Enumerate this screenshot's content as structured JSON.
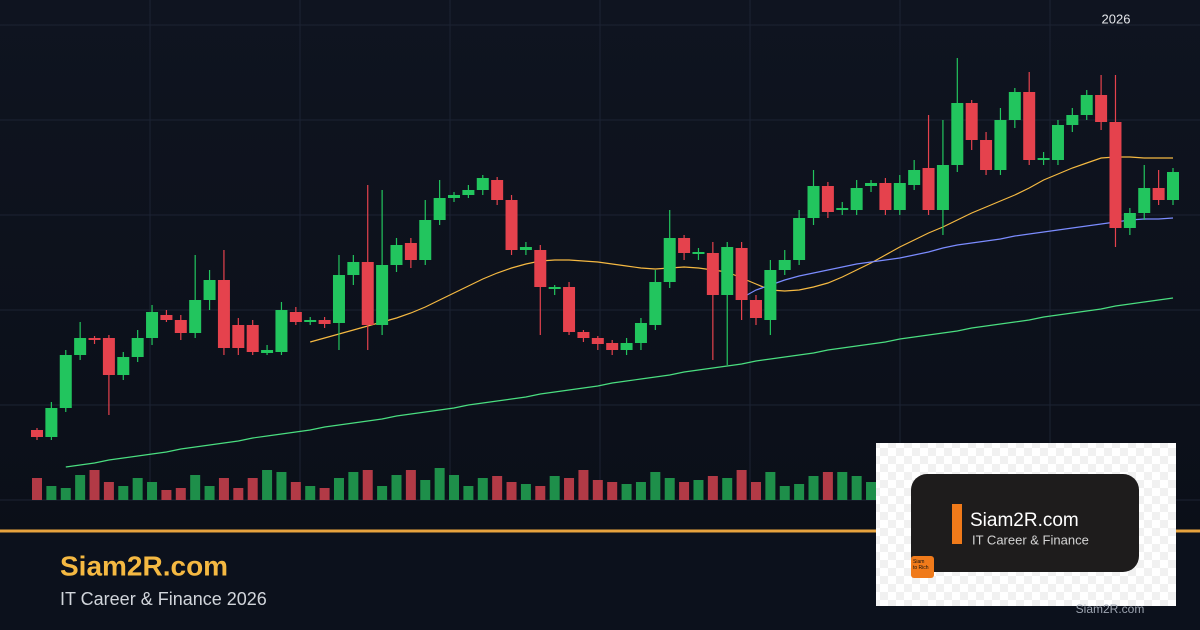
{
  "chart_data": {
    "type": "candlestick",
    "annotation": "2026",
    "open": [
      70,
      63,
      92,
      145,
      162,
      162,
      125,
      143,
      162,
      185,
      180,
      167,
      200,
      220,
      175,
      175,
      147,
      148,
      188,
      178,
      180,
      177,
      225,
      238,
      175,
      235,
      257,
      240,
      280,
      302,
      305,
      310,
      320,
      300,
      250,
      250,
      211,
      213,
      168,
      162,
      157,
      150,
      157,
      175,
      218,
      262,
      246,
      247,
      205,
      252,
      200,
      180,
      230,
      240,
      282,
      314,
      290,
      290,
      314,
      317,
      290,
      315,
      332,
      290,
      335,
      397,
      360,
      330,
      380,
      408,
      341,
      340,
      375,
      385,
      405,
      378,
      272,
      287,
      312,
      300
    ],
    "high": [
      72,
      98,
      150,
      178,
      164,
      165,
      148,
      170,
      195,
      190,
      185,
      245,
      230,
      250,
      182,
      180,
      155,
      198,
      193,
      183,
      183,
      245,
      245,
      315,
      310,
      262,
      262,
      300,
      320,
      308,
      315,
      325,
      323,
      305,
      258,
      255,
      215,
      218,
      170,
      164,
      160,
      162,
      182,
      230,
      290,
      265,
      252,
      258,
      258,
      258,
      205,
      240,
      250,
      290,
      330,
      318,
      298,
      320,
      320,
      322,
      325,
      340,
      385,
      380,
      442,
      400,
      368,
      392,
      412,
      428,
      348,
      380,
      392,
      410,
      425,
      425,
      292,
      335,
      330,
      332
    ],
    "low": [
      60,
      60,
      88,
      140,
      156,
      85,
      120,
      138,
      155,
      178,
      160,
      162,
      190,
      145,
      145,
      145,
      145,
      145,
      175,
      175,
      172,
      150,
      215,
      150,
      165,
      228,
      232,
      235,
      275,
      298,
      302,
      305,
      295,
      245,
      245,
      165,
      205,
      165,
      158,
      150,
      145,
      145,
      150,
      170,
      212,
      240,
      240,
      140,
      135,
      180,
      175,
      165,
      225,
      235,
      275,
      282,
      285,
      285,
      308,
      285,
      285,
      310,
      285,
      265,
      328,
      350,
      325,
      325,
      372,
      335,
      335,
      335,
      368,
      380,
      370,
      253,
      265,
      280,
      295,
      295
    ],
    "close": [
      63,
      92,
      145,
      162,
      160,
      125,
      143,
      162,
      188,
      180,
      167,
      200,
      220,
      152,
      152,
      148,
      150,
      190,
      178,
      180,
      176,
      225,
      238,
      175,
      235,
      255,
      240,
      280,
      302,
      305,
      310,
      322,
      300,
      250,
      253,
      213,
      213,
      168,
      162,
      156,
      150,
      157,
      177,
      218,
      262,
      247,
      248,
      205,
      253,
      200,
      182,
      230,
      240,
      282,
      314,
      288,
      292,
      312,
      317,
      290,
      317,
      330,
      290,
      335,
      397,
      360,
      330,
      380,
      408,
      340,
      342,
      375,
      385,
      405,
      378,
      272,
      287,
      312,
      300,
      328
    ],
    "up_color": "#22c55e",
    "down_color": "#e5424d",
    "volume": {
      "values": [
        22,
        14,
        12,
        25,
        30,
        18,
        14,
        22,
        18,
        10,
        12,
        25,
        14,
        22,
        12,
        22,
        30,
        28,
        18,
        14,
        12,
        22,
        28,
        30,
        14,
        25,
        30,
        20,
        32,
        25,
        14,
        22,
        24,
        18,
        16,
        14,
        24,
        22,
        30,
        20,
        18,
        16,
        18,
        28,
        22,
        18,
        20,
        24,
        22,
        30,
        18,
        28,
        14,
        16,
        24,
        28,
        28,
        24,
        18,
        null,
        null,
        null,
        null,
        null,
        null,
        null,
        null,
        null,
        null,
        null,
        null,
        null,
        null,
        null,
        null,
        null,
        null,
        null,
        null,
        null
      ],
      "up_color": "#1e8f4a",
      "down_color": "#b23a46"
    },
    "lines": [
      {
        "color": "#f5b942",
        "values": [
          null,
          null,
          null,
          null,
          null,
          null,
          null,
          null,
          null,
          null,
          null,
          null,
          null,
          null,
          null,
          null,
          null,
          null,
          null,
          158,
          162,
          166,
          170,
          174,
          178,
          182,
          187,
          193,
          200,
          207,
          214,
          221,
          227,
          232,
          236,
          239,
          240,
          240,
          239,
          238,
          236,
          234,
          232,
          231,
          232,
          233,
          232,
          230,
          228,
          222,
          216,
          210,
          209,
          210,
          213,
          217,
          223,
          230,
          237,
          245,
          253,
          260,
          267,
          273,
          280,
          287,
          293,
          299,
          305,
          312,
          320,
          326,
          332,
          337,
          342,
          343,
          343,
          342,
          342,
          342
        ]
      },
      {
        "color": "#7b8cff",
        "values": [
          null,
          null,
          null,
          null,
          null,
          null,
          null,
          null,
          null,
          null,
          null,
          null,
          null,
          null,
          null,
          null,
          null,
          null,
          null,
          null,
          null,
          null,
          null,
          null,
          null,
          null,
          null,
          null,
          null,
          null,
          null,
          null,
          null,
          null,
          null,
          null,
          null,
          null,
          null,
          null,
          null,
          null,
          null,
          null,
          null,
          null,
          null,
          null,
          null,
          202,
          210,
          215,
          220,
          224,
          227,
          230,
          233,
          236,
          238,
          240,
          242,
          245,
          248,
          252,
          255,
          257,
          259,
          261,
          264,
          266,
          268,
          270,
          272,
          274,
          276,
          278,
          280,
          281,
          281,
          282
        ]
      },
      {
        "color": "#4ade80",
        "values": [
          null,
          null,
          33,
          35,
          37,
          40,
          42,
          44,
          46,
          48,
          51,
          53,
          55,
          57,
          59,
          62,
          64,
          66,
          68,
          70,
          73,
          75,
          77,
          79,
          81,
          84,
          86,
          88,
          90,
          92,
          95,
          97,
          99,
          101,
          103,
          106,
          108,
          110,
          112,
          114,
          117,
          119,
          121,
          123,
          125,
          128,
          130,
          132,
          134,
          136,
          139,
          141,
          143,
          145,
          147,
          150,
          152,
          154,
          156,
          158,
          161,
          163,
          165,
          167,
          169,
          172,
          174,
          176,
          178,
          180,
          183,
          185,
          187,
          189,
          191,
          194,
          196,
          198,
          200,
          202
        ]
      }
    ],
    "ylim": [
      0,
      475
    ],
    "grid": true
  },
  "brand": {
    "title": "Siam2R.com",
    "subtitle": "IT Career & Finance 2026",
    "card_title": "Siam2R.com",
    "card_subtitle": "IT Career & Finance",
    "logo": "Siam to Rich",
    "watermark": "Siam2R.com"
  }
}
